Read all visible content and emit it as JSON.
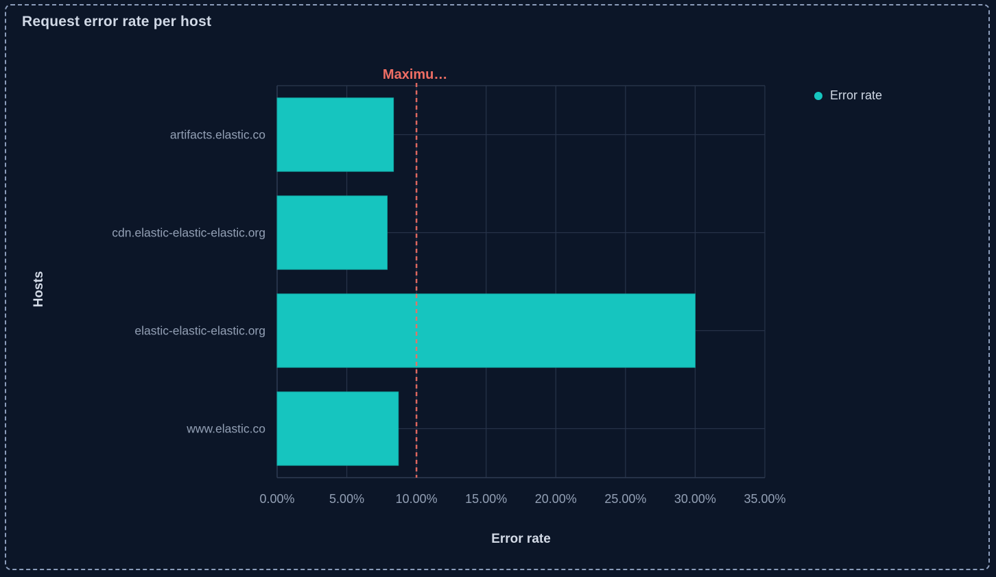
{
  "panel": {
    "title": "Request error rate per host"
  },
  "legend": {
    "items": [
      {
        "label": "Error rate",
        "color": "#16C5BF"
      }
    ]
  },
  "colors": {
    "background": "#0C1628",
    "panel_border": "#8C9DBB",
    "bar_fill": "#16C5BF",
    "bar_stroke": "#10ACA7",
    "grid": "#273349",
    "axis_line": "#2E3B52",
    "tick_label": "#93A0B5",
    "axis_title": "#D3DAE6",
    "annotation": "#EF6E64",
    "title_text": "#D0D8E5"
  },
  "chart_data": {
    "type": "bar",
    "orientation": "horizontal",
    "title": "Request error rate per host",
    "categories": [
      "artifacts.elastic.co",
      "cdn.elastic-elastic-elastic.org",
      "elastic-elastic-elastic.org",
      "www.elastic.co"
    ],
    "series": [
      {
        "name": "Error rate",
        "values": [
          8.35,
          7.9,
          30.0,
          8.7
        ]
      }
    ],
    "value_unit": "%",
    "xlabel": "Error rate",
    "ylabel": "Hosts",
    "xlim": [
      0,
      35
    ],
    "x_tick_step": 5,
    "x_tick_labels": [
      "0.00%",
      "5.00%",
      "10.00%",
      "15.00%",
      "20.00%",
      "25.00%",
      "30.00%",
      "35.00%"
    ],
    "grid": true,
    "legend_position": "right",
    "annotation": {
      "type": "vertical-line",
      "value": 10,
      "label": "Maximu…",
      "line_style": "dashed",
      "color": "#EF6E64"
    }
  }
}
